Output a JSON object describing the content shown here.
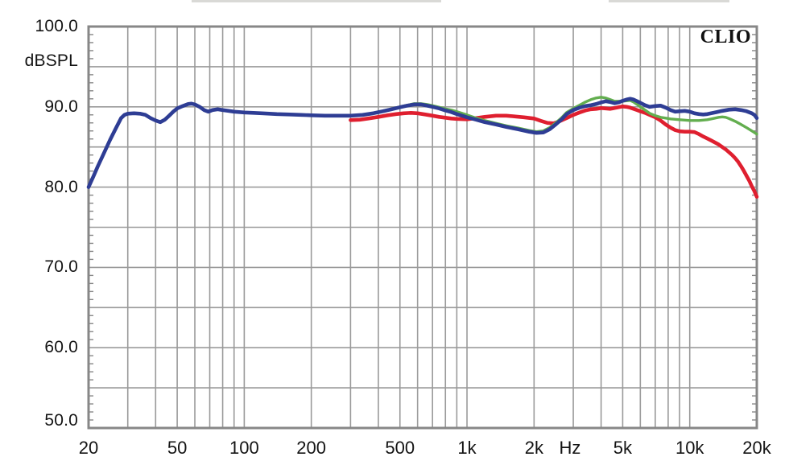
{
  "branding": "CLIO",
  "chart_data": {
    "type": "line",
    "title": "",
    "legend": "none",
    "grid": "on",
    "grid_color": "#9a9a9a",
    "border_color": "#878787",
    "x_axis": {
      "unit": "Hz",
      "scale": "log",
      "min": 20,
      "max": 20000,
      "unit_label_position": 2900,
      "ticks": [
        {
          "label": "20",
          "value": 20
        },
        {
          "label": "50",
          "value": 50
        },
        {
          "label": "100",
          "value": 100
        },
        {
          "label": "200",
          "value": 200
        },
        {
          "label": "500",
          "value": 500
        },
        {
          "label": "1k",
          "value": 1000
        },
        {
          "label": "2k",
          "value": 2000
        },
        {
          "label": "5k",
          "value": 5000
        },
        {
          "label": "10k",
          "value": 10000
        },
        {
          "label": "20k",
          "value": 20000
        }
      ],
      "gridlines": [
        30,
        40,
        50,
        60,
        70,
        80,
        90,
        100,
        200,
        300,
        400,
        500,
        600,
        700,
        800,
        900,
        1000,
        2000,
        3000,
        4000,
        5000,
        6000,
        7000,
        8000,
        9000,
        10000
      ]
    },
    "y_axis": {
      "unit": "dBSPL",
      "min": 50,
      "max": 100,
      "ticks": [
        {
          "label": "100.0",
          "value": 100
        },
        {
          "label": "90.0",
          "value": 90
        },
        {
          "label": "80.0",
          "value": 80
        },
        {
          "label": "70.0",
          "value": 70
        },
        {
          "label": "60.0",
          "value": 60
        },
        {
          "label": "50.0",
          "value": 50
        }
      ],
      "gridlines": [
        55,
        60,
        65,
        70,
        75,
        80,
        85,
        90,
        95
      ],
      "minor_tick_step_db": 1
    },
    "series": [
      {
        "name": "red-response",
        "color": "#df1f2f",
        "width": 4.6,
        "points": [
          [
            300,
            88.35
          ],
          [
            330,
            88.4
          ],
          [
            360,
            88.55
          ],
          [
            400,
            88.75
          ],
          [
            440,
            88.95
          ],
          [
            480,
            89.1
          ],
          [
            520,
            89.2
          ],
          [
            560,
            89.25
          ],
          [
            600,
            89.2
          ],
          [
            650,
            89.05
          ],
          [
            700,
            88.9
          ],
          [
            750,
            88.75
          ],
          [
            800,
            88.65
          ],
          [
            850,
            88.55
          ],
          [
            900,
            88.5
          ],
          [
            1000,
            88.45
          ],
          [
            1100,
            88.6
          ],
          [
            1200,
            88.75
          ],
          [
            1350,
            88.9
          ],
          [
            1500,
            88.9
          ],
          [
            1650,
            88.8
          ],
          [
            1800,
            88.7
          ],
          [
            2000,
            88.55
          ],
          [
            2150,
            88.25
          ],
          [
            2300,
            88.0
          ],
          [
            2450,
            87.95
          ],
          [
            2600,
            88.2
          ],
          [
            2800,
            88.6
          ],
          [
            3000,
            89.0
          ],
          [
            3200,
            89.3
          ],
          [
            3400,
            89.55
          ],
          [
            3600,
            89.7
          ],
          [
            3800,
            89.75
          ],
          [
            4000,
            89.85
          ],
          [
            4200,
            89.8
          ],
          [
            4400,
            89.75
          ],
          [
            4600,
            89.85
          ],
          [
            4800,
            89.95
          ],
          [
            5000,
            90.05
          ],
          [
            5200,
            90.0
          ],
          [
            5400,
            89.9
          ],
          [
            5600,
            89.75
          ],
          [
            5800,
            89.6
          ],
          [
            6000,
            89.45
          ],
          [
            6300,
            89.25
          ],
          [
            6600,
            89.0
          ],
          [
            7000,
            88.7
          ],
          [
            7400,
            88.3
          ],
          [
            7800,
            87.8
          ],
          [
            8200,
            87.4
          ],
          [
            8600,
            87.1
          ],
          [
            9000,
            86.95
          ],
          [
            9500,
            86.9
          ],
          [
            10000,
            86.9
          ],
          [
            10500,
            86.85
          ],
          [
            11000,
            86.6
          ],
          [
            11500,
            86.3
          ],
          [
            12000,
            86.05
          ],
          [
            12500,
            85.8
          ],
          [
            13000,
            85.55
          ],
          [
            13500,
            85.3
          ],
          [
            14000,
            85.0
          ],
          [
            14500,
            84.7
          ],
          [
            15000,
            84.35
          ],
          [
            15500,
            84.0
          ],
          [
            16000,
            83.6
          ],
          [
            16500,
            83.15
          ],
          [
            17000,
            82.6
          ],
          [
            17500,
            82.0
          ],
          [
            18000,
            81.4
          ],
          [
            18500,
            80.8
          ],
          [
            19000,
            80.1
          ],
          [
            19500,
            79.5
          ],
          [
            20000,
            78.8
          ]
        ]
      },
      {
        "name": "green-response",
        "color": "#63ae4f",
        "width": 3.4,
        "points": [
          [
            420,
            89.5
          ],
          [
            460,
            89.75
          ],
          [
            500,
            90.0
          ],
          [
            540,
            90.2
          ],
          [
            580,
            90.4
          ],
          [
            620,
            90.4
          ],
          [
            660,
            90.3
          ],
          [
            700,
            90.15
          ],
          [
            750,
            89.95
          ],
          [
            800,
            89.75
          ],
          [
            850,
            89.6
          ],
          [
            900,
            89.4
          ],
          [
            1000,
            89.0
          ],
          [
            1100,
            88.6
          ],
          [
            1200,
            88.3
          ],
          [
            1350,
            87.95
          ],
          [
            1500,
            87.65
          ],
          [
            1700,
            87.35
          ],
          [
            1900,
            87.05
          ],
          [
            2050,
            86.9
          ],
          [
            2200,
            87.0
          ],
          [
            2350,
            87.4
          ],
          [
            2500,
            88.0
          ],
          [
            2650,
            88.6
          ],
          [
            2800,
            89.3
          ],
          [
            3000,
            89.8
          ],
          [
            3200,
            90.2
          ],
          [
            3400,
            90.6
          ],
          [
            3600,
            90.9
          ],
          [
            3800,
            91.1
          ],
          [
            4000,
            91.2
          ],
          [
            4200,
            91.1
          ],
          [
            4400,
            90.9
          ],
          [
            4600,
            90.7
          ],
          [
            4800,
            90.7
          ],
          [
            5000,
            90.7
          ],
          [
            5200,
            90.75
          ],
          [
            5400,
            90.8
          ],
          [
            5600,
            90.6
          ],
          [
            5800,
            90.3
          ],
          [
            6000,
            90.0
          ],
          [
            6300,
            89.6
          ],
          [
            6600,
            89.2
          ],
          [
            7000,
            88.9
          ],
          [
            7400,
            88.7
          ],
          [
            7800,
            88.6
          ],
          [
            8200,
            88.5
          ],
          [
            8600,
            88.45
          ],
          [
            9000,
            88.4
          ],
          [
            9500,
            88.35
          ],
          [
            10000,
            88.3
          ],
          [
            10500,
            88.3
          ],
          [
            11000,
            88.3
          ],
          [
            11500,
            88.35
          ],
          [
            12000,
            88.4
          ],
          [
            12500,
            88.5
          ],
          [
            13000,
            88.6
          ],
          [
            13500,
            88.7
          ],
          [
            14000,
            88.75
          ],
          [
            14500,
            88.7
          ],
          [
            15000,
            88.55
          ],
          [
            16000,
            88.2
          ],
          [
            17000,
            87.8
          ],
          [
            18000,
            87.4
          ],
          [
            19000,
            87.0
          ],
          [
            20000,
            86.6
          ]
        ]
      },
      {
        "name": "blue-response",
        "color": "#2e3d94",
        "width": 4.6,
        "points": [
          [
            20,
            80.0
          ],
          [
            21,
            81.3
          ],
          [
            22,
            82.6
          ],
          [
            23.5,
            84.3
          ],
          [
            25,
            85.9
          ],
          [
            26.5,
            87.3
          ],
          [
            28,
            88.6
          ],
          [
            29,
            89.0
          ],
          [
            30,
            89.15
          ],
          [
            32,
            89.2
          ],
          [
            34,
            89.15
          ],
          [
            36,
            89.0
          ],
          [
            38,
            88.6
          ],
          [
            40,
            88.3
          ],
          [
            42,
            88.1
          ],
          [
            44,
            88.4
          ],
          [
            46,
            88.9
          ],
          [
            48,
            89.4
          ],
          [
            50,
            89.8
          ],
          [
            53,
            90.1
          ],
          [
            56,
            90.35
          ],
          [
            58,
            90.4
          ],
          [
            60,
            90.3
          ],
          [
            63,
            90.0
          ],
          [
            66,
            89.6
          ],
          [
            69,
            89.4
          ],
          [
            72,
            89.6
          ],
          [
            76,
            89.7
          ],
          [
            80,
            89.6
          ],
          [
            85,
            89.5
          ],
          [
            90,
            89.4
          ],
          [
            100,
            89.3
          ],
          [
            110,
            89.25
          ],
          [
            120,
            89.2
          ],
          [
            140,
            89.1
          ],
          [
            160,
            89.05
          ],
          [
            180,
            89.0
          ],
          [
            200,
            88.95
          ],
          [
            230,
            88.9
          ],
          [
            260,
            88.9
          ],
          [
            300,
            88.9
          ],
          [
            340,
            89.0
          ],
          [
            380,
            89.2
          ],
          [
            420,
            89.45
          ],
          [
            460,
            89.7
          ],
          [
            500,
            89.95
          ],
          [
            540,
            90.15
          ],
          [
            580,
            90.3
          ],
          [
            620,
            90.3
          ],
          [
            660,
            90.15
          ],
          [
            700,
            90.0
          ],
          [
            750,
            89.8
          ],
          [
            800,
            89.55
          ],
          [
            850,
            89.35
          ],
          [
            900,
            89.1
          ],
          [
            950,
            88.9
          ],
          [
            1000,
            88.7
          ],
          [
            1100,
            88.4
          ],
          [
            1200,
            88.1
          ],
          [
            1350,
            87.8
          ],
          [
            1500,
            87.5
          ],
          [
            1700,
            87.2
          ],
          [
            1900,
            86.9
          ],
          [
            2050,
            86.75
          ],
          [
            2200,
            86.8
          ],
          [
            2350,
            87.2
          ],
          [
            2500,
            87.8
          ],
          [
            2650,
            88.4
          ],
          [
            2800,
            89.1
          ],
          [
            3000,
            89.6
          ],
          [
            3200,
            89.9
          ],
          [
            3400,
            90.1
          ],
          [
            3600,
            90.2
          ],
          [
            3800,
            90.35
          ],
          [
            4000,
            90.55
          ],
          [
            4200,
            90.7
          ],
          [
            4400,
            90.6
          ],
          [
            4600,
            90.45
          ],
          [
            4800,
            90.55
          ],
          [
            5000,
            90.75
          ],
          [
            5200,
            90.9
          ],
          [
            5400,
            91.0
          ],
          [
            5600,
            90.9
          ],
          [
            5800,
            90.7
          ],
          [
            6000,
            90.5
          ],
          [
            6300,
            90.2
          ],
          [
            6600,
            90.0
          ],
          [
            7000,
            90.1
          ],
          [
            7400,
            90.15
          ],
          [
            7800,
            89.9
          ],
          [
            8200,
            89.6
          ],
          [
            8600,
            89.4
          ],
          [
            9000,
            89.45
          ],
          [
            9500,
            89.5
          ],
          [
            10000,
            89.4
          ],
          [
            10500,
            89.2
          ],
          [
            11000,
            89.1
          ],
          [
            11500,
            89.05
          ],
          [
            12000,
            89.1
          ],
          [
            13000,
            89.3
          ],
          [
            14000,
            89.5
          ],
          [
            15000,
            89.65
          ],
          [
            16000,
            89.7
          ],
          [
            17000,
            89.6
          ],
          [
            18000,
            89.45
          ],
          [
            19000,
            89.2
          ],
          [
            19500,
            89.0
          ],
          [
            20000,
            88.6
          ]
        ]
      }
    ]
  }
}
